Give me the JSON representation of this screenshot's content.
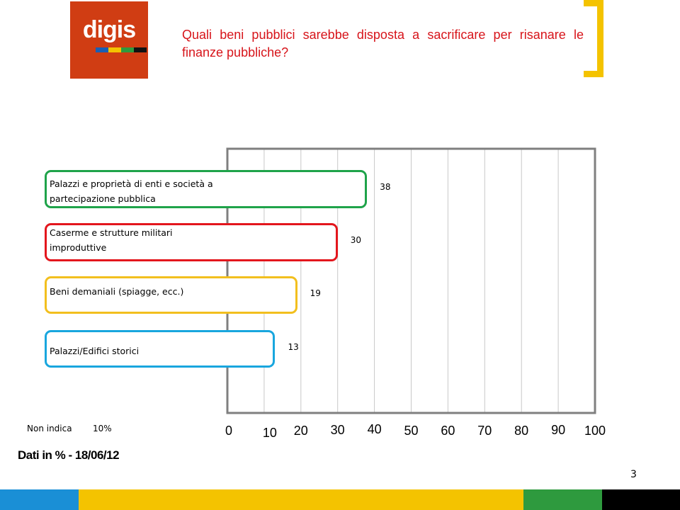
{
  "logo": {
    "text": "digis",
    "stripe_colors": [
      "#1a5fb4",
      "#f4c300",
      "#2e9a3e",
      "#111111"
    ]
  },
  "title": "Quali beni pubblici sarebbe disposta a sacrificare per risanare le finanze pubbliche?",
  "colors": {
    "title": "#d7141a",
    "bracket": "#f4c300",
    "logo_bg": "#d03d13"
  },
  "chart_data": {
    "type": "bar",
    "orientation": "horizontal",
    "categories": [
      "Palazzi e proprietà di enti e società a partecipazione pubblica",
      "Caserme e strutture militari improduttive",
      "Beni demaniali (spiagge, ecc.)",
      "Palazzi/Edifici storici"
    ],
    "values": [
      38,
      30,
      19,
      13
    ],
    "data_labels": [
      "38",
      "30",
      "19",
      "13"
    ],
    "bar_colors": [
      "#1fa34a",
      "#e3161d",
      "#f2bf1e",
      "#19a6de"
    ],
    "xlim": [
      0,
      100
    ],
    "x_ticks": [
      "0",
      "10",
      "20",
      "30",
      "40",
      "50",
      "60",
      "70",
      "80",
      "90",
      "100"
    ],
    "grid": true,
    "legend": "none"
  },
  "non_indica": {
    "label": "Non indica",
    "value": "10%"
  },
  "note": "Dati in % - 18/06/12",
  "page_number": "3",
  "footer_colors": [
    "#1a8fd6",
    "#f4c300",
    "#2e9a3e",
    "#000000"
  ]
}
